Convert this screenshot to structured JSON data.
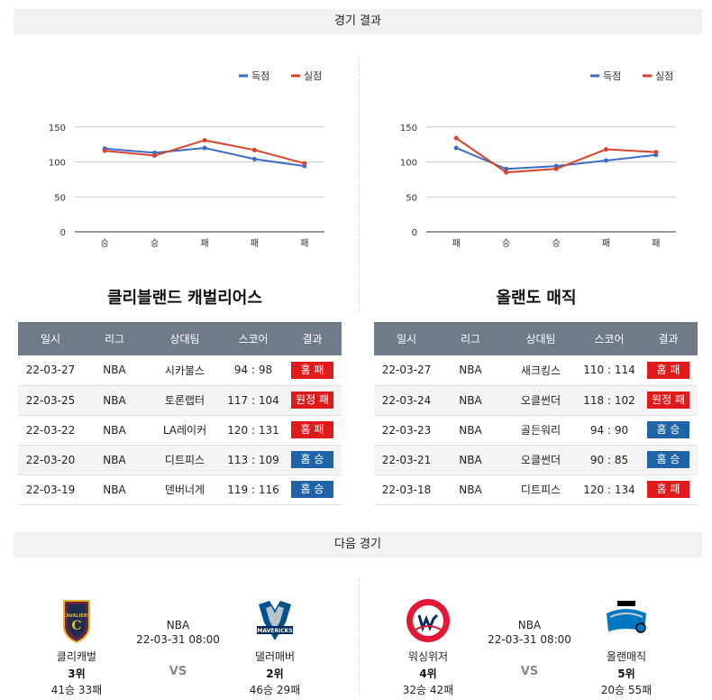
{
  "sections": {
    "results_title": "경기 결과",
    "next_title": "다음 경기"
  },
  "legend": {
    "scored": "득점",
    "conceded": "실점"
  },
  "colors": {
    "scored": "#3d6ccf",
    "conceded": "#d9432b",
    "header_bg": "#6f7b87",
    "loss_badge": "#e01a1a",
    "win_badge": "#1f64a8"
  },
  "chart_data": [
    {
      "type": "line",
      "categories": [
        "승",
        "승",
        "패",
        "패",
        "패"
      ],
      "series": [
        {
          "name": "득점",
          "values": [
            119,
            113,
            120,
            104,
            94
          ]
        },
        {
          "name": "실점",
          "values": [
            116,
            109,
            131,
            117,
            98
          ]
        }
      ],
      "yticks": [
        0,
        50,
        100,
        150
      ],
      "ylim": [
        0,
        160
      ],
      "legend_position": "top-right",
      "grid": true
    },
    {
      "type": "line",
      "categories": [
        "패",
        "승",
        "승",
        "패",
        "패"
      ],
      "series": [
        {
          "name": "득점",
          "values": [
            120,
            90,
            94,
            102,
            110
          ]
        },
        {
          "name": "실점",
          "values": [
            134,
            85,
            90,
            118,
            114
          ]
        }
      ],
      "yticks": [
        0,
        50,
        100,
        150
      ],
      "ylim": [
        0,
        160
      ],
      "legend_position": "top-right",
      "grid": true
    }
  ],
  "left": {
    "team_name": "클리블랜드 캐벌리어스",
    "headers": [
      "일시",
      "리그",
      "상대팀",
      "스코어",
      "결과"
    ],
    "rows": [
      {
        "date": "22-03-27",
        "league": "NBA",
        "opponent": "시카불스",
        "score": "94 : 98",
        "result": "홈 패",
        "kind": "loss"
      },
      {
        "date": "22-03-25",
        "league": "NBA",
        "opponent": "토론랩터",
        "score": "117 : 104",
        "result": "원정 패",
        "kind": "loss"
      },
      {
        "date": "22-03-22",
        "league": "NBA",
        "opponent": "LA레이커",
        "score": "120 : 131",
        "result": "홈 패",
        "kind": "loss"
      },
      {
        "date": "22-03-20",
        "league": "NBA",
        "opponent": "디트피스",
        "score": "113 : 109",
        "result": "홈 승",
        "kind": "win"
      },
      {
        "date": "22-03-19",
        "league": "NBA",
        "opponent": "덴버너게",
        "score": "119 : 116",
        "result": "홈 승",
        "kind": "win"
      }
    ]
  },
  "right": {
    "team_name": "올랜도 매직",
    "headers": [
      "일시",
      "리그",
      "상대팀",
      "스코어",
      "결과"
    ],
    "rows": [
      {
        "date": "22-03-27",
        "league": "NBA",
        "opponent": "새크킹스",
        "score": "110 : 114",
        "result": "홈 패",
        "kind": "loss"
      },
      {
        "date": "22-03-24",
        "league": "NBA",
        "opponent": "오클썬더",
        "score": "118 : 102",
        "result": "원정 패",
        "kind": "loss"
      },
      {
        "date": "22-03-23",
        "league": "NBA",
        "opponent": "골든워리",
        "score": "94 : 90",
        "result": "홈 승",
        "kind": "win"
      },
      {
        "date": "22-03-21",
        "league": "NBA",
        "opponent": "오클썬더",
        "score": "90 : 85",
        "result": "홈 승",
        "kind": "win"
      },
      {
        "date": "22-03-18",
        "league": "NBA",
        "opponent": "디트피스",
        "score": "120 : 134",
        "result": "홈 패",
        "kind": "loss"
      }
    ]
  },
  "next_games": [
    {
      "league": "NBA",
      "time": "22-03-31 08:00",
      "vs": "VS",
      "home": {
        "name": "클리캐벌",
        "rank": "3위",
        "record": "41승 33패",
        "logo": "cavaliers-logo"
      },
      "away": {
        "name": "댈러매버",
        "rank": "2위",
        "record": "46승 29패",
        "logo": "mavericks-logo"
      }
    },
    {
      "league": "NBA",
      "time": "22-03-31 08:00",
      "vs": "VS",
      "home": {
        "name": "워싱위저",
        "rank": "4위",
        "record": "32승 42패",
        "logo": "wizards-logo"
      },
      "away": {
        "name": "올랜매직",
        "rank": "5위",
        "record": "20승 55패",
        "logo": "magic-logo"
      }
    }
  ]
}
